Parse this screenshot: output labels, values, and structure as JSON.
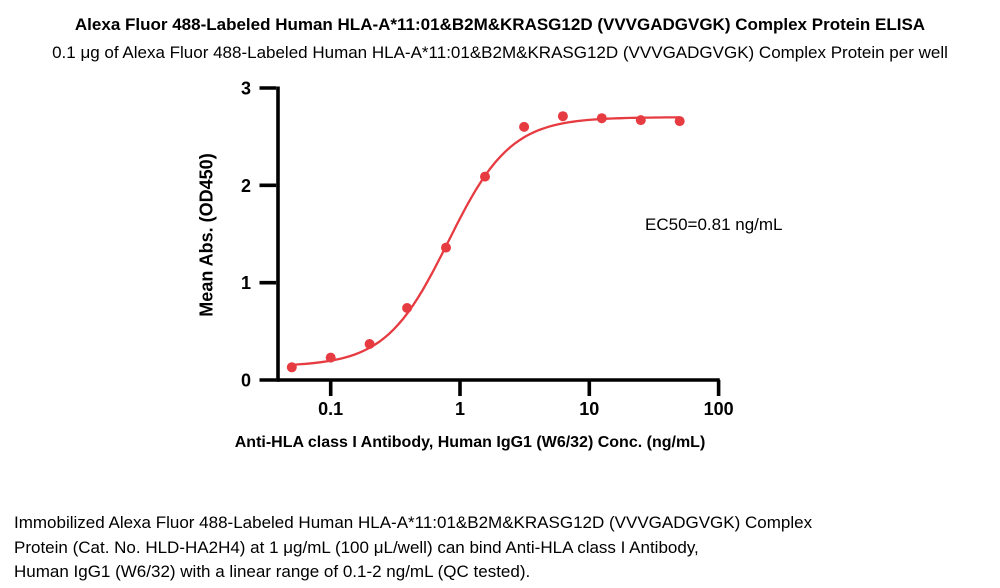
{
  "title": "Alexa Fluor 488-Labeled Human HLA-A*11:01&B2M&KRASG12D (VVVGADGVGK) Complex Protein ELISA",
  "subtitle": "0.1 μg of Alexa Fluor 488-Labeled Human HLA-A*11:01&B2M&KRASG12D (VVVGADGVGK) Complex Protein per well",
  "chart_data": {
    "type": "scatter",
    "x_scale": "log10",
    "title": "",
    "xlabel": "Anti-HLA class I Antibody, Human IgG1 (W6/32) Conc. (ng/mL)",
    "ylabel": "Mean Abs. (OD450)",
    "x_ticks": [
      "0.1",
      "1",
      "10",
      "100"
    ],
    "y_ticks": [
      0,
      1,
      2,
      3
    ],
    "xlim": [
      0.05,
      50
    ],
    "ylim": [
      0,
      3
    ],
    "grid": false,
    "legend": "none",
    "annotation": "EC50=0.81 ng/mL",
    "ec50_ng_ml": 0.81,
    "points": [
      {
        "x": 0.05,
        "y": 0.13
      },
      {
        "x": 0.1,
        "y": 0.23
      },
      {
        "x": 0.2,
        "y": 0.37
      },
      {
        "x": 0.39,
        "y": 0.74
      },
      {
        "x": 0.78,
        "y": 1.36
      },
      {
        "x": 1.56,
        "y": 2.09
      },
      {
        "x": 3.13,
        "y": 2.6
      },
      {
        "x": 6.25,
        "y": 2.71
      },
      {
        "x": 12.5,
        "y": 2.69
      },
      {
        "x": 25,
        "y": 2.67
      },
      {
        "x": 50,
        "y": 2.66
      }
    ],
    "fit": {
      "model": "4PL",
      "bottom": 0.14,
      "top": 2.7,
      "ec50": 0.81,
      "hill": 1.8
    },
    "colors": {
      "series": "#e63b40",
      "axis": "#000000",
      "text": "#000000"
    }
  },
  "footer": {
    "lines": [
      "Immobilized Alexa Fluor 488-Labeled Human HLA-A*11:01&B2M&KRASG12D (VVVGADGVGK) Complex",
      "Protein (Cat. No. HLD-HA2H4) at 1 μg/mL (100 μL/well) can bind Anti-HLA class I Antibody,",
      "Human IgG1 (W6/32) with a linear range of 0.1-2 ng/mL (QC tested)."
    ]
  }
}
